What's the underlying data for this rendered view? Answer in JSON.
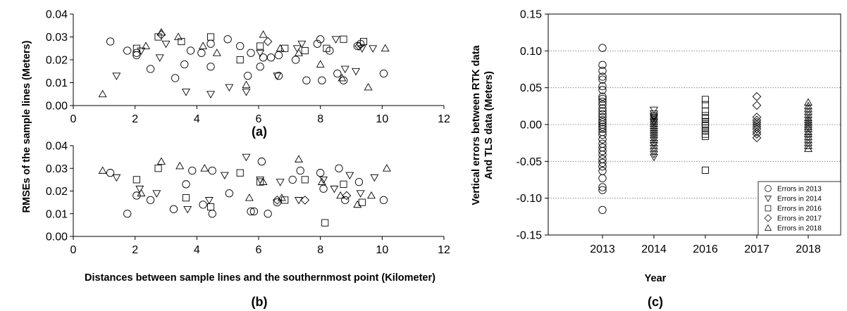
{
  "chart_data": [
    {
      "id": "a",
      "type": "scatter",
      "panel_label": "(a)",
      "ylabel": "RMSEs of the sample lines (Meters)",
      "xlim": [
        0,
        12
      ],
      "ylim": [
        0,
        0.04
      ],
      "x_ticks": [
        "0",
        "2",
        "4",
        "6",
        "8",
        "10",
        "12"
      ],
      "y_ticks": [
        "0.00",
        "0.01",
        "0.02",
        "0.03",
        "0.04"
      ],
      "series": [
        {
          "marker": "circle",
          "points": [
            [
              1.2,
              0.028
            ],
            [
              1.75,
              0.024
            ],
            [
              2.05,
              0.022
            ],
            [
              2.05,
              0.023
            ],
            [
              2.5,
              0.016
            ],
            [
              3.3,
              0.012
            ],
            [
              3.6,
              0.018
            ],
            [
              3.8,
              0.024
            ],
            [
              4.15,
              0.023
            ],
            [
              4.45,
              0.027
            ],
            [
              4.45,
              0.017
            ],
            [
              5.0,
              0.029
            ],
            [
              5.4,
              0.026
            ],
            [
              5.65,
              0.013
            ],
            [
              5.75,
              0.023
            ],
            [
              6.05,
              0.017
            ],
            [
              6.15,
              0.021
            ],
            [
              6.4,
              0.021
            ],
            [
              6.65,
              0.022
            ],
            [
              6.65,
              0.013
            ],
            [
              7.2,
              0.02
            ],
            [
              7.55,
              0.011
            ],
            [
              7.9,
              0.027
            ],
            [
              8.05,
              0.011
            ],
            [
              8.3,
              0.024
            ],
            [
              8.55,
              0.014
            ],
            [
              8.75,
              0.011
            ],
            [
              9.2,
              0.026
            ],
            [
              9.3,
              0.027
            ],
            [
              10.05,
              0.014
            ],
            [
              8.0,
              0.029
            ]
          ]
        },
        {
          "marker": "triangle-down",
          "points": [
            [
              1.4,
              0.013
            ],
            [
              2.2,
              0.024
            ],
            [
              2.8,
              0.021
            ],
            [
              3.0,
              0.027
            ],
            [
              3.65,
              0.006
            ],
            [
              4.45,
              0.005
            ],
            [
              5.05,
              0.008
            ],
            [
              5.6,
              0.006
            ],
            [
              6.05,
              0.023
            ],
            [
              6.6,
              0.013
            ],
            [
              7.25,
              0.025
            ],
            [
              7.4,
              0.027
            ],
            [
              8.5,
              0.029
            ],
            [
              8.8,
              0.016
            ],
            [
              9.15,
              0.015
            ],
            [
              9.35,
              0.025
            ],
            [
              9.7,
              0.025
            ]
          ]
        },
        {
          "marker": "square",
          "points": [
            [
              2.05,
              0.025
            ],
            [
              2.75,
              0.03
            ],
            [
              3.5,
              0.028
            ],
            [
              4.45,
              0.03
            ],
            [
              5.4,
              0.02
            ],
            [
              6.05,
              0.026
            ],
            [
              6.85,
              0.025
            ],
            [
              7.5,
              0.024
            ],
            [
              8.2,
              0.025
            ],
            [
              8.75,
              0.029
            ],
            [
              9.4,
              0.028
            ]
          ]
        },
        {
          "marker": "diamond",
          "points": [
            [
              2.85,
              0.031
            ],
            [
              6.3,
              0.028
            ],
            [
              9.25,
              0.026
            ]
          ]
        },
        {
          "marker": "triangle-up",
          "points": [
            [
              0.95,
              0.005
            ],
            [
              2.35,
              0.026
            ],
            [
              2.85,
              0.032
            ],
            [
              3.4,
              0.03
            ],
            [
              4.2,
              0.026
            ],
            [
              4.65,
              0.023
            ],
            [
              5.6,
              0.009
            ],
            [
              6.15,
              0.031
            ],
            [
              6.7,
              0.025
            ],
            [
              7.3,
              0.023
            ],
            [
              8.0,
              0.018
            ],
            [
              8.7,
              0.012
            ],
            [
              9.55,
              0.008
            ],
            [
              10.1,
              0.025
            ]
          ]
        }
      ]
    },
    {
      "id": "b",
      "type": "scatter",
      "panel_label": "(b)",
      "xlabel": "Distances between sample lines and the southernmost point (Kilometer)",
      "xlim": [
        0,
        12
      ],
      "ylim": [
        0,
        0.04
      ],
      "x_ticks": [
        "0",
        "2",
        "4",
        "6",
        "8",
        "10",
        "12"
      ],
      "y_ticks": [
        "0.00",
        "0.01",
        "0.02",
        "0.03",
        "0.04"
      ],
      "series": [
        {
          "marker": "circle",
          "points": [
            [
              1.2,
              0.028
            ],
            [
              1.75,
              0.01
            ],
            [
              2.05,
              0.018
            ],
            [
              2.5,
              0.016
            ],
            [
              3.25,
              0.012
            ],
            [
              3.65,
              0.023
            ],
            [
              3.85,
              0.029
            ],
            [
              4.2,
              0.014
            ],
            [
              4.5,
              0.029
            ],
            [
              4.5,
              0.01
            ],
            [
              5.05,
              0.019
            ],
            [
              5.75,
              0.011
            ],
            [
              5.85,
              0.011
            ],
            [
              6.1,
              0.033
            ],
            [
              6.3,
              0.01
            ],
            [
              6.6,
              0.015
            ],
            [
              7.1,
              0.025
            ],
            [
              7.35,
              0.029
            ],
            [
              8.0,
              0.028
            ],
            [
              8.1,
              0.021
            ],
            [
              8.6,
              0.03
            ],
            [
              8.8,
              0.016
            ],
            [
              9.25,
              0.024
            ],
            [
              10.05,
              0.016
            ]
          ]
        },
        {
          "marker": "triangle-down",
          "points": [
            [
              1.4,
              0.026
            ],
            [
              2.15,
              0.021
            ],
            [
              2.7,
              0.019
            ],
            [
              3.7,
              0.012
            ],
            [
              4.4,
              0.016
            ],
            [
              4.9,
              0.027
            ],
            [
              5.6,
              0.035
            ],
            [
              6.05,
              0.025
            ],
            [
              6.7,
              0.024
            ],
            [
              7.3,
              0.016
            ],
            [
              8.1,
              0.025
            ],
            [
              8.45,
              0.021
            ],
            [
              8.95,
              0.027
            ],
            [
              9.3,
              0.019
            ],
            [
              9.75,
              0.026
            ]
          ]
        },
        {
          "marker": "square",
          "points": [
            [
              2.05,
              0.025
            ],
            [
              2.75,
              0.03
            ],
            [
              3.65,
              0.017
            ],
            [
              4.45,
              0.013
            ],
            [
              5.4,
              0.028
            ],
            [
              6.05,
              0.024
            ],
            [
              6.85,
              0.016
            ],
            [
              7.5,
              0.025
            ],
            [
              8.15,
              0.006
            ],
            [
              8.75,
              0.023
            ],
            [
              9.35,
              0.015
            ]
          ]
        },
        {
          "marker": "diamond",
          "points": [
            [
              6.6,
              0.016
            ],
            [
              7.5,
              0.016
            ],
            [
              8.85,
              0.018
            ]
          ]
        },
        {
          "marker": "triangle-up",
          "points": [
            [
              0.95,
              0.029
            ],
            [
              2.2,
              0.019
            ],
            [
              2.85,
              0.033
            ],
            [
              3.45,
              0.031
            ],
            [
              4.25,
              0.03
            ],
            [
              5.7,
              0.017
            ],
            [
              6.15,
              0.024
            ],
            [
              6.75,
              0.017
            ],
            [
              7.3,
              0.034
            ],
            [
              8.05,
              0.024
            ],
            [
              8.65,
              0.018
            ],
            [
              9.2,
              0.014
            ],
            [
              9.65,
              0.018
            ],
            [
              10.15,
              0.03
            ]
          ]
        }
      ]
    },
    {
      "id": "c",
      "type": "scatter",
      "panel_label": "(c)",
      "xlabel": "Year",
      "ylabel_lines": [
        "Vertical errors between RTK data",
        "And TLS data (Meters)"
      ],
      "categories": [
        "2013",
        "2014",
        "2016",
        "2017",
        "2018"
      ],
      "ylim": [
        -0.15,
        0.15
      ],
      "y_ticks": [
        "-0.15",
        "-0.10",
        "-0.05",
        "0.00",
        "0.05",
        "0.10",
        "0.15"
      ],
      "y_grid": [
        -0.1,
        -0.05,
        0.0,
        0.05,
        0.1
      ],
      "legend_position": "bottom-right",
      "series": [
        {
          "name": "Errors in 2013",
          "marker": "circle",
          "category": "2013",
          "values": [
            0.104,
            0.081,
            0.073,
            0.065,
            0.061,
            0.052,
            0.047,
            0.038,
            0.035,
            0.031,
            0.027,
            0.022,
            0.018,
            0.014,
            0.01,
            0.006,
            0.003,
            0.0,
            -0.003,
            -0.006,
            -0.01,
            -0.014,
            -0.02,
            -0.026,
            -0.031,
            -0.036,
            -0.041,
            -0.047,
            -0.052,
            -0.057,
            -0.063,
            -0.073,
            -0.085,
            -0.089,
            -0.116
          ]
        },
        {
          "name": "Errors in 2014",
          "marker": "triangle-down",
          "category": "2014",
          "values": [
            0.02,
            0.015,
            0.012,
            0.01,
            0.008,
            0.005,
            0.003,
            0.0,
            -0.003,
            -0.006,
            -0.009,
            -0.012,
            -0.015,
            -0.018,
            -0.021,
            -0.025,
            -0.028,
            -0.032,
            -0.036,
            -0.04,
            -0.044
          ]
        },
        {
          "name": "Errors in 2016",
          "marker": "square",
          "category": "2016",
          "values": [
            0.034,
            0.027,
            0.018,
            0.012,
            0.008,
            0.004,
            0.001,
            -0.002,
            -0.005,
            -0.009,
            -0.013,
            -0.016,
            -0.062
          ]
        },
        {
          "name": "Errors in 2017",
          "marker": "diamond",
          "category": "2017",
          "values": [
            0.038,
            0.026,
            0.01,
            0.006,
            0.003,
            0.0,
            -0.003,
            -0.006,
            -0.01,
            -0.013,
            -0.018
          ]
        },
        {
          "name": "Errors in 2018",
          "marker": "triangle-up",
          "category": "2018",
          "values": [
            0.03,
            0.025,
            0.021,
            0.017,
            0.013,
            0.009,
            0.006,
            0.003,
            0.0,
            -0.003,
            -0.006,
            -0.01,
            -0.013,
            -0.017,
            -0.021,
            -0.025,
            -0.029,
            -0.033
          ]
        }
      ]
    }
  ]
}
